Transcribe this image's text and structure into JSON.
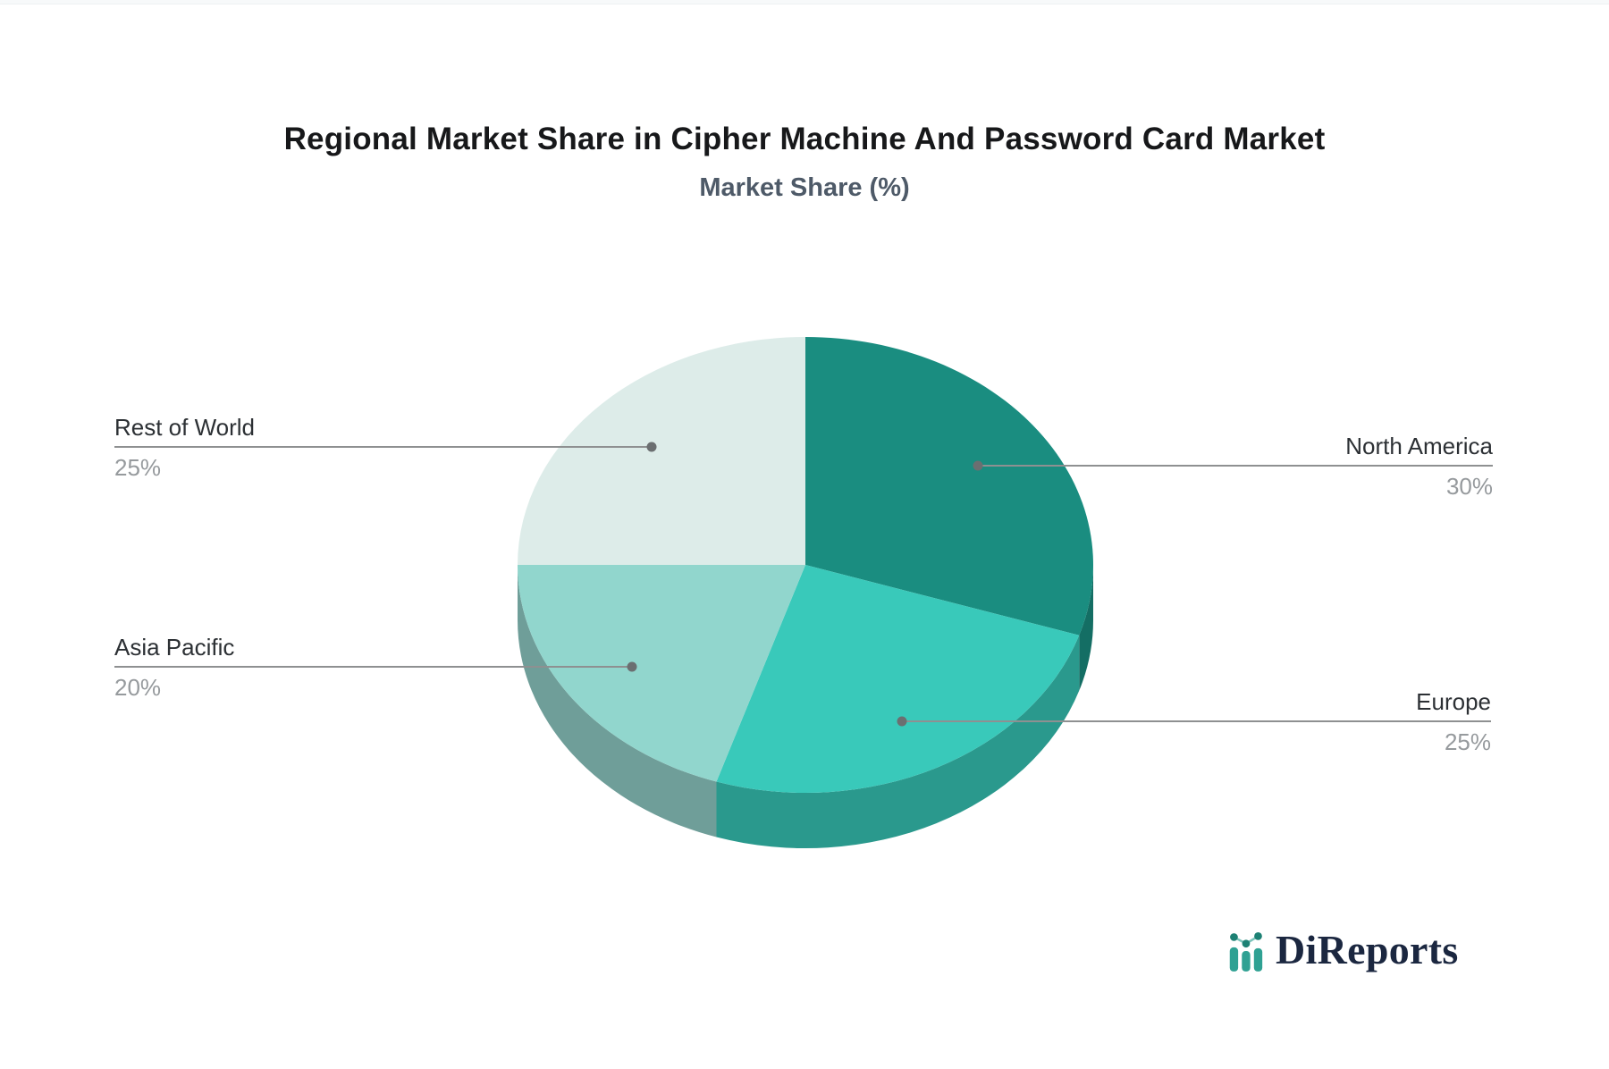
{
  "page": {
    "title": "Regional Market Share in Cipher Machine And Password Card Market",
    "subtitle": "Market Share (%)"
  },
  "brand": {
    "name": "DiReports",
    "icon": "bar-line-chart-icon",
    "text_color": "#1b2740",
    "icon_bar_color": "#2fa193",
    "icon_dot_color": "#1d8174"
  },
  "chart_data": {
    "type": "pie",
    "title": "Regional Market Share in Cipher Machine And Password Card Market",
    "subtitle": "Market Share (%)",
    "unit": "%",
    "effect": "3d-extruded",
    "direction": "clockwise",
    "start_angle_deg_from_top": 0,
    "legend": "none",
    "labels_position": "outside-with-leader-lines",
    "categories": [
      "North America",
      "Europe",
      "Asia Pacific",
      "Rest of World"
    ],
    "values": [
      30,
      25,
      20,
      25
    ],
    "slices": [
      {
        "label": "North America",
        "value": 30,
        "value_label": "30%",
        "color": "#1a8d80",
        "side_color": "#146e64"
      },
      {
        "label": "Europe",
        "value": 25,
        "value_label": "25%",
        "color": "#39c9ba",
        "side_color": "#2a998d"
      },
      {
        "label": "Asia Pacific",
        "value": 20,
        "value_label": "20%",
        "color": "#91d6cd",
        "side_color": "#6f9e99"
      },
      {
        "label": "Rest of World",
        "value": 25,
        "value_label": "25%",
        "color": "#ddece9",
        "side_color": "#c2d8d5"
      }
    ],
    "leader_line_color": "#8e9091",
    "leader_dot_color": "#6b6f71",
    "label_color": "#2c3034",
    "value_color": "#969a9d"
  }
}
